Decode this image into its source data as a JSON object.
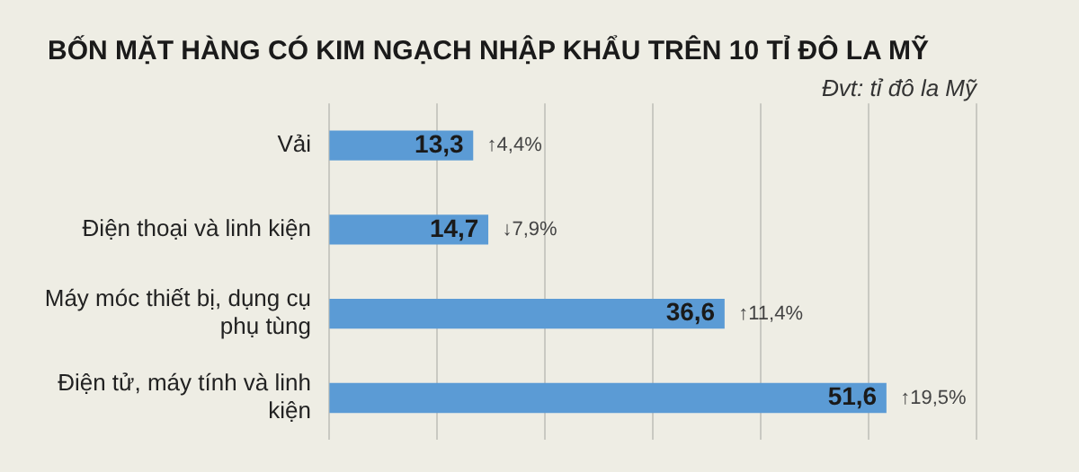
{
  "chart_data": {
    "type": "bar",
    "orientation": "horizontal",
    "title": "BỐN MẶT HÀNG CÓ KIM NGẠCH NHẬP KHẨU TRÊN 10 TỈ ĐÔ LA MỸ",
    "subtitle": "Đvt: tỉ đô la Mỹ",
    "categories": [
      "Vải",
      "Điện thoại và linh kiện",
      "Máy móc thiết bị, dụng cụ phụ tùng",
      "Điện tử, máy tính và linh kiện"
    ],
    "values": [
      13.3,
      14.7,
      36.6,
      51.6
    ],
    "value_labels": [
      "13,3",
      "14,7",
      "36,6",
      "51,6"
    ],
    "color": "#5b9bd5",
    "xlim": [
      0,
      60
    ],
    "xticks": [
      {
        "value": 0,
        "label": null
      },
      {
        "value": 10,
        "label": null
      },
      {
        "value": 20,
        "label": null
      },
      {
        "value": 30,
        "label": null
      },
      {
        "value": 40,
        "label": null
      },
      {
        "value": 50,
        "label": null
      },
      {
        "value": 60,
        "label": null
      }
    ],
    "tick_labels": "y",
    "grid": "x",
    "legend": false,
    "annotations": [
      {
        "text": "↑4,4%",
        "x": 13.3,
        "y": "Vải"
      },
      {
        "text": "↓7,9%",
        "x": 14.7,
        "y": "Điện thoại và linh kiện"
      },
      {
        "text": "↑11,4%",
        "x": 36.6,
        "y": "Máy móc thiết bị, dụng cụ phụ tùng"
      },
      {
        "text": "↑19,5%",
        "x": 51.6,
        "y": "Điện tử, máy tính và linh kiện"
      }
    ]
  }
}
